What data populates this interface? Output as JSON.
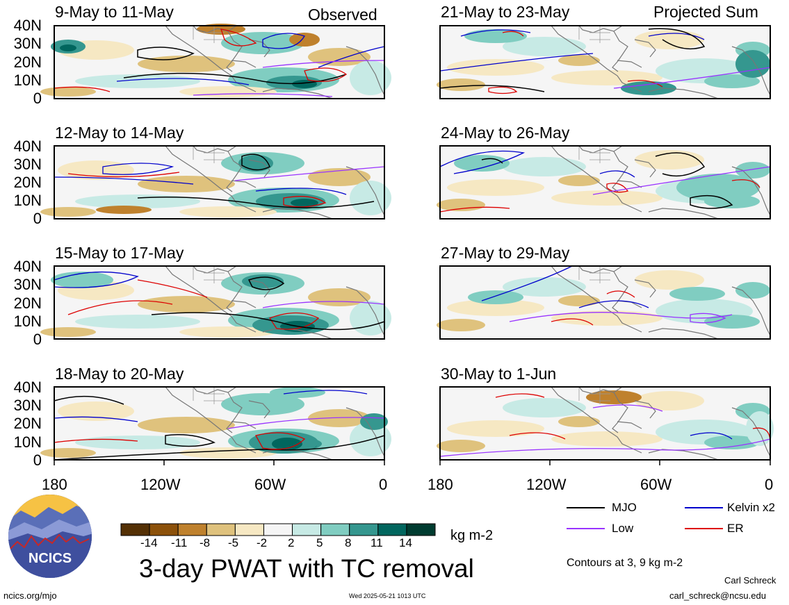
{
  "header": {
    "left_label": "Observed",
    "right_label": "Projected Sum"
  },
  "panels_left": [
    {
      "title": "9-May to 11-May"
    },
    {
      "title": "12-May to 14-May"
    },
    {
      "title": "15-May to 17-May"
    },
    {
      "title": "18-May to 20-May"
    }
  ],
  "panels_right": [
    {
      "title": "21-May to 23-May"
    },
    {
      "title": "24-May to 26-May"
    },
    {
      "title": "27-May to 29-May"
    },
    {
      "title": "30-May to 1-Jun"
    }
  ],
  "lat_labels": [
    "40N",
    "30N",
    "20N",
    "10N",
    "0"
  ],
  "lon_labels": [
    "180",
    "120W",
    "60W",
    "0"
  ],
  "colorbar": {
    "ticks": [
      "-14",
      "-11",
      "-8",
      "-5",
      "-2",
      "2",
      "5",
      "8",
      "11",
      "14"
    ],
    "units": "kg m-2",
    "colors": [
      "#543005",
      "#8c510a",
      "#bf812d",
      "#dfc27d",
      "#f6e8c3",
      "#f5f5f5",
      "#c7eae5",
      "#80cdc1",
      "#35978f",
      "#01665e",
      "#003c30"
    ]
  },
  "legend": {
    "items": [
      {
        "label": "MJO",
        "color": "#000000"
      },
      {
        "label": "Kelvin x2",
        "color": "#0000cc"
      },
      {
        "label": "Low",
        "color": "#9933ff"
      },
      {
        "label": "ER",
        "color": "#dd0000"
      }
    ],
    "note": "Contours at 3, 9 kg m-2"
  },
  "main_title": "3-day PWAT with TC removal",
  "logo": {
    "text": "NCICS"
  },
  "footer": {
    "url": "ncics.org/mjo",
    "timestamp": "Wed 2025-05-21 1013 UTC",
    "author": "Carl Schreck",
    "email": "carl_schreck@ncsu.edu"
  }
}
